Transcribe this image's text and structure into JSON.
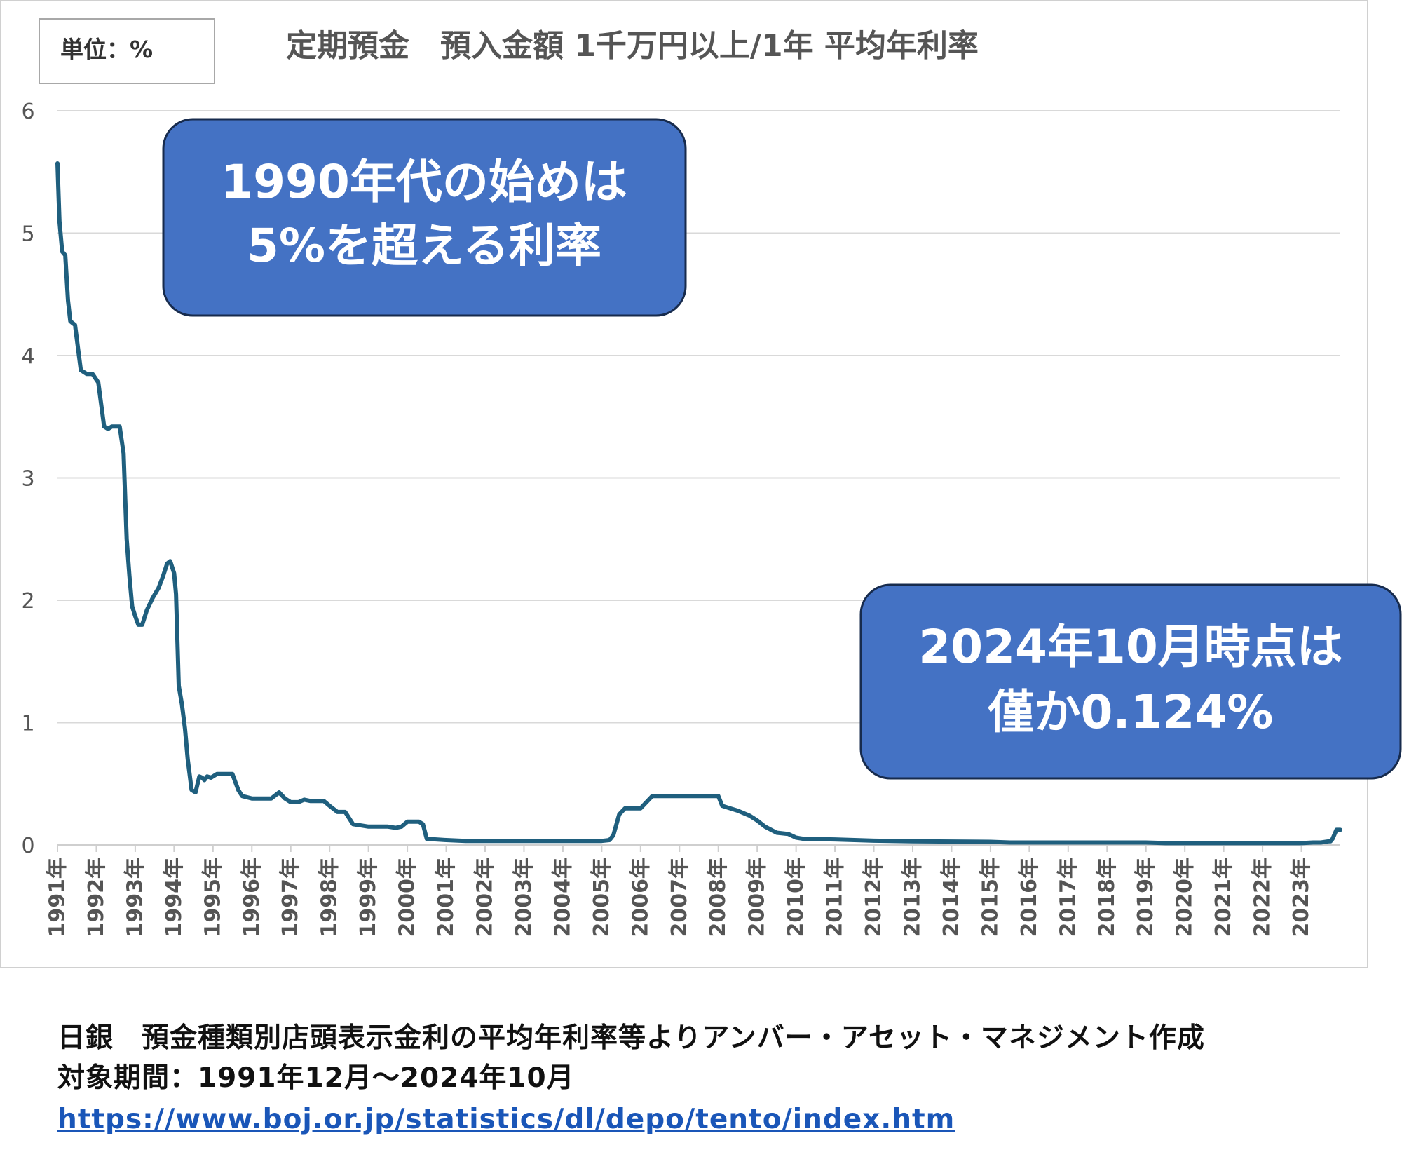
{
  "chart_data": {
    "type": "line",
    "title": "定期預金　預入金額 1千万円以上/1年 平均年利率",
    "unit_label": "単位：%",
    "ylim": [
      0,
      6
    ],
    "y_ticks": [
      "0",
      "1",
      "2",
      "3",
      "4",
      "5",
      "6"
    ],
    "grid": true,
    "x_range": [
      1991.0,
      2024.0
    ],
    "x_ticks": [
      "1991年",
      "1992年",
      "1993年",
      "1994年",
      "1995年",
      "1996年",
      "1997年",
      "1998年",
      "1999年",
      "2000年",
      "2001年",
      "2002年",
      "2003年",
      "2004年",
      "2005年",
      "2006年",
      "2007年",
      "2008年",
      "2009年",
      "2010年",
      "2011年",
      "2012年",
      "2013年",
      "2014年",
      "2015年",
      "2016年",
      "2017年",
      "2018年",
      "2019年",
      "2020年",
      "2021年",
      "2022年",
      "2023年"
    ],
    "series": [
      {
        "name": "平均年利率",
        "color": "#1f5f7e",
        "x": [
          1991.0,
          1991.05,
          1991.12,
          1991.2,
          1991.27,
          1991.33,
          1991.45,
          1991.6,
          1991.75,
          1991.9,
          1992.05,
          1992.2,
          1992.3,
          1992.4,
          1992.6,
          1992.7,
          1992.78,
          1992.85,
          1992.92,
          1993.0,
          1993.08,
          1993.18,
          1993.3,
          1993.45,
          1993.6,
          1993.72,
          1993.82,
          1993.9,
          1994.0,
          1994.05,
          1994.12,
          1994.2,
          1994.28,
          1994.35,
          1994.45,
          1994.55,
          1994.65,
          1994.72,
          1994.78,
          1994.85,
          1994.95,
          1995.1,
          1995.3,
          1995.5,
          1995.65,
          1995.75,
          1996.0,
          1996.3,
          1996.5,
          1996.7,
          1996.85,
          1997.0,
          1997.2,
          1997.35,
          1997.5,
          1997.7,
          1997.85,
          1998.0,
          1998.2,
          1998.4,
          1998.6,
          1999.0,
          1999.3,
          1999.5,
          1999.7,
          1999.85,
          2000.0,
          2000.2,
          2000.3,
          2000.4,
          2000.5,
          2001.0,
          2001.5,
          2002.0,
          2003.0,
          2004.0,
          2004.5,
          2005.0,
          2005.2,
          2005.3,
          2005.45,
          2005.6,
          2005.8,
          2006.0,
          2006.3,
          2006.4,
          2006.6,
          2007.0,
          2007.5,
          2007.85,
          2008.0,
          2008.1,
          2008.3,
          2008.5,
          2008.8,
          2009.0,
          2009.2,
          2009.5,
          2009.8,
          2010.0,
          2010.2,
          2011.0,
          2012.0,
          2013.0,
          2015.0,
          2015.5,
          2016.0,
          2017.0,
          2018.0,
          2019.0,
          2019.5,
          2020.0,
          2021.0,
          2022.0,
          2023.0,
          2023.3,
          2023.5,
          2023.7,
          2023.75,
          2023.8,
          2023.9,
          2024.0
        ],
        "values": [
          5.57,
          5.1,
          4.85,
          4.82,
          4.45,
          4.28,
          4.25,
          3.88,
          3.85,
          3.85,
          3.78,
          3.42,
          3.4,
          3.42,
          3.42,
          3.2,
          2.5,
          2.2,
          1.95,
          1.87,
          1.8,
          1.8,
          1.92,
          2.02,
          2.1,
          2.2,
          2.3,
          2.32,
          2.22,
          2.05,
          1.3,
          1.15,
          0.95,
          0.7,
          0.45,
          0.43,
          0.56,
          0.55,
          0.53,
          0.56,
          0.55,
          0.58,
          0.58,
          0.58,
          0.45,
          0.4,
          0.38,
          0.38,
          0.38,
          0.43,
          0.38,
          0.35,
          0.35,
          0.37,
          0.36,
          0.36,
          0.36,
          0.32,
          0.27,
          0.27,
          0.17,
          0.15,
          0.15,
          0.15,
          0.14,
          0.15,
          0.19,
          0.19,
          0.19,
          0.17,
          0.05,
          0.04,
          0.033,
          0.033,
          0.033,
          0.033,
          0.033,
          0.033,
          0.04,
          0.08,
          0.25,
          0.3,
          0.3,
          0.3,
          0.4,
          0.4,
          0.4,
          0.4,
          0.4,
          0.4,
          0.4,
          0.32,
          0.3,
          0.28,
          0.24,
          0.2,
          0.15,
          0.1,
          0.09,
          0.06,
          0.05,
          0.045,
          0.035,
          0.03,
          0.026,
          0.02,
          0.02,
          0.02,
          0.02,
          0.02,
          0.015,
          0.015,
          0.015,
          0.015,
          0.015,
          0.02,
          0.02,
          0.03,
          0.03,
          0.05,
          0.124,
          0.124
        ]
      }
    ],
    "annotations": [
      {
        "line1": "1990年代の始めは",
        "line2": "5%を超える利率"
      },
      {
        "line1": "2024年10月時点は",
        "line2": "僅か0.124%"
      }
    ]
  },
  "footer": {
    "source": "日銀　預金種類別店頭表示金利の平均年利率等よりアンバー・アセット・マネジメント作成",
    "period": "対象期間：1991年12月～2024年10月",
    "url": "https://www.boj.or.jp/statistics/dl/depo/tento/index.htm"
  },
  "colors": {
    "line": "#1f5f7e",
    "grid": "#d9d9d9",
    "callout_fill": "#4472c4",
    "callout_stroke": "#172b4d",
    "axis_text": "#555555",
    "title_text": "#555555"
  }
}
